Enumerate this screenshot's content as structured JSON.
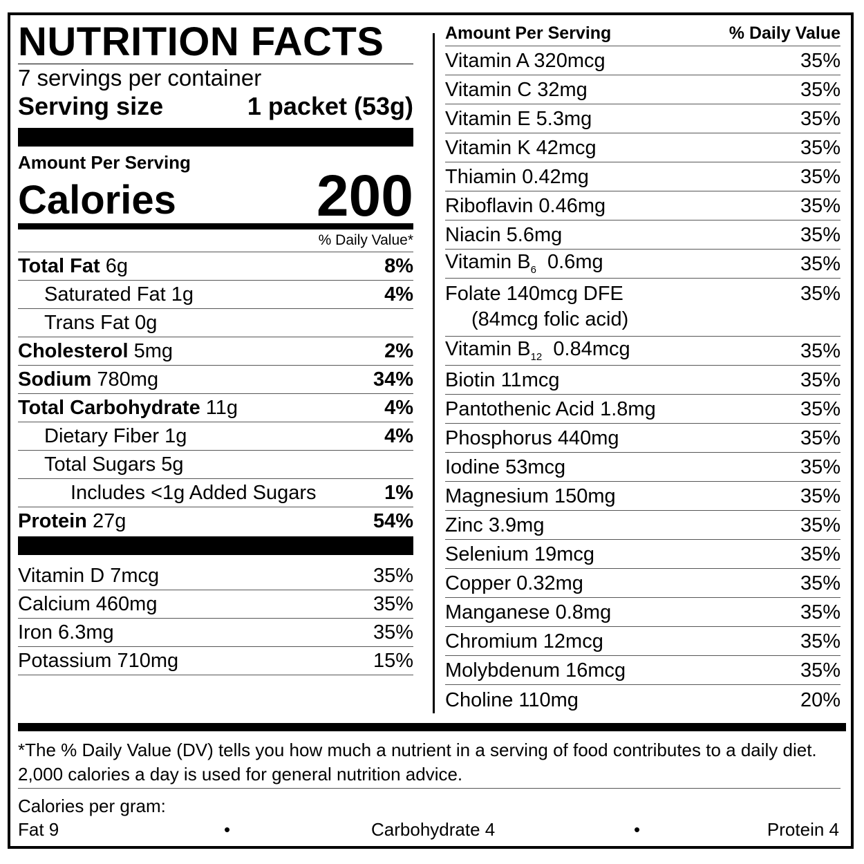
{
  "header": {
    "title": "NUTRITION FACTS",
    "servings": "7 servings per container",
    "serving_size_label": "Serving size",
    "serving_size_value": "1 packet (53g)"
  },
  "calories": {
    "amount_per_serving": "Amount Per Serving",
    "label": "Calories",
    "value": "200",
    "dv_header": "% Daily Value*"
  },
  "nutrients": [
    {
      "name": "Total Fat",
      "amount": "6g",
      "dv": "8%"
    },
    {
      "name": "Saturated Fat",
      "amount": "1g",
      "dv": "4%"
    },
    {
      "name": "Trans Fat",
      "amount": "0g",
      "dv": ""
    },
    {
      "name": "Cholesterol",
      "amount": "5mg",
      "dv": "2%"
    },
    {
      "name": "Sodium",
      "amount": "780mg",
      "dv": "34%"
    },
    {
      "name": "Total Carbohydrate",
      "amount": "11g",
      "dv": "4%"
    },
    {
      "name": "Dietary Fiber",
      "amount": "1g",
      "dv": "4%"
    },
    {
      "name": "Total Sugars",
      "amount": "5g",
      "dv": ""
    },
    {
      "name": "Includes <1g Added Sugars",
      "amount": "",
      "dv": "1%"
    },
    {
      "name": "Protein",
      "amount": "27g",
      "dv": "54%"
    }
  ],
  "minerals_left": [
    {
      "label": "Vitamin D 7mcg",
      "dv": "35%"
    },
    {
      "label": "Calcium 460mg",
      "dv": "35%"
    },
    {
      "label": "Iron 6.3mg",
      "dv": "35%"
    },
    {
      "label": "Potassium 710mg",
      "dv": "15%"
    }
  ],
  "right_header": {
    "amount_per_serving": "Amount Per Serving",
    "dv": "% Daily Value"
  },
  "right": [
    {
      "label": "Vitamin A  320mcg",
      "dv": "35%"
    },
    {
      "label": "Vitamin C  32mg",
      "dv": "35%"
    },
    {
      "label": "Vitamin E  5.3mg",
      "dv": "35%"
    },
    {
      "label": "Vitamin K  42mcg",
      "dv": "35%"
    },
    {
      "label": "Thiamin  0.42mg",
      "dv": "35%"
    },
    {
      "label": "Riboflavin  0.46mg",
      "dv": "35%"
    },
    {
      "label": "Niacin  5.6mg",
      "dv": "35%"
    },
    {
      "label": "Vitamin B",
      "sub": "6",
      "amount": "0.6mg",
      "dv": "35%"
    },
    {
      "label": "Folate  140mcg DFE",
      "sub_line": "(84mcg folic acid)",
      "dv": "35%"
    },
    {
      "label": "Vitamin B",
      "sub": "12",
      "amount": "0.84mcg",
      "dv": "35%"
    },
    {
      "label": "Biotin  11mcg",
      "dv": "35%"
    },
    {
      "label": "Pantothenic Acid  1.8mg",
      "dv": "35%"
    },
    {
      "label": "Phosphorus  440mg",
      "dv": "35%"
    },
    {
      "label": "Iodine  53mcg",
      "dv": "35%"
    },
    {
      "label": "Magnesium  150mg",
      "dv": "35%"
    },
    {
      "label": "Zinc  3.9mg",
      "dv": "35%"
    },
    {
      "label": "Selenium  19mcg",
      "dv": "35%"
    },
    {
      "label": "Copper  0.32mg",
      "dv": "35%"
    },
    {
      "label": "Manganese  0.8mg",
      "dv": "35%"
    },
    {
      "label": "Chromium  12mcg",
      "dv": "35%"
    },
    {
      "label": "Molybdenum 16mcg",
      "dv": "35%"
    },
    {
      "label": "Choline 110mg",
      "dv": "20%"
    }
  ],
  "footnote": {
    "line1": "*The % Daily Value (DV) tells you how much a nutrient in a serving of food contributes to a daily diet.",
    "line2": "2,000 calories a day is used for general nutrition advice.",
    "cpg_label": "Calories per gram:",
    "fat": "Fat 9",
    "carb": "Carbohydrate 4",
    "protein": "Protein 4",
    "bullet": "•"
  }
}
